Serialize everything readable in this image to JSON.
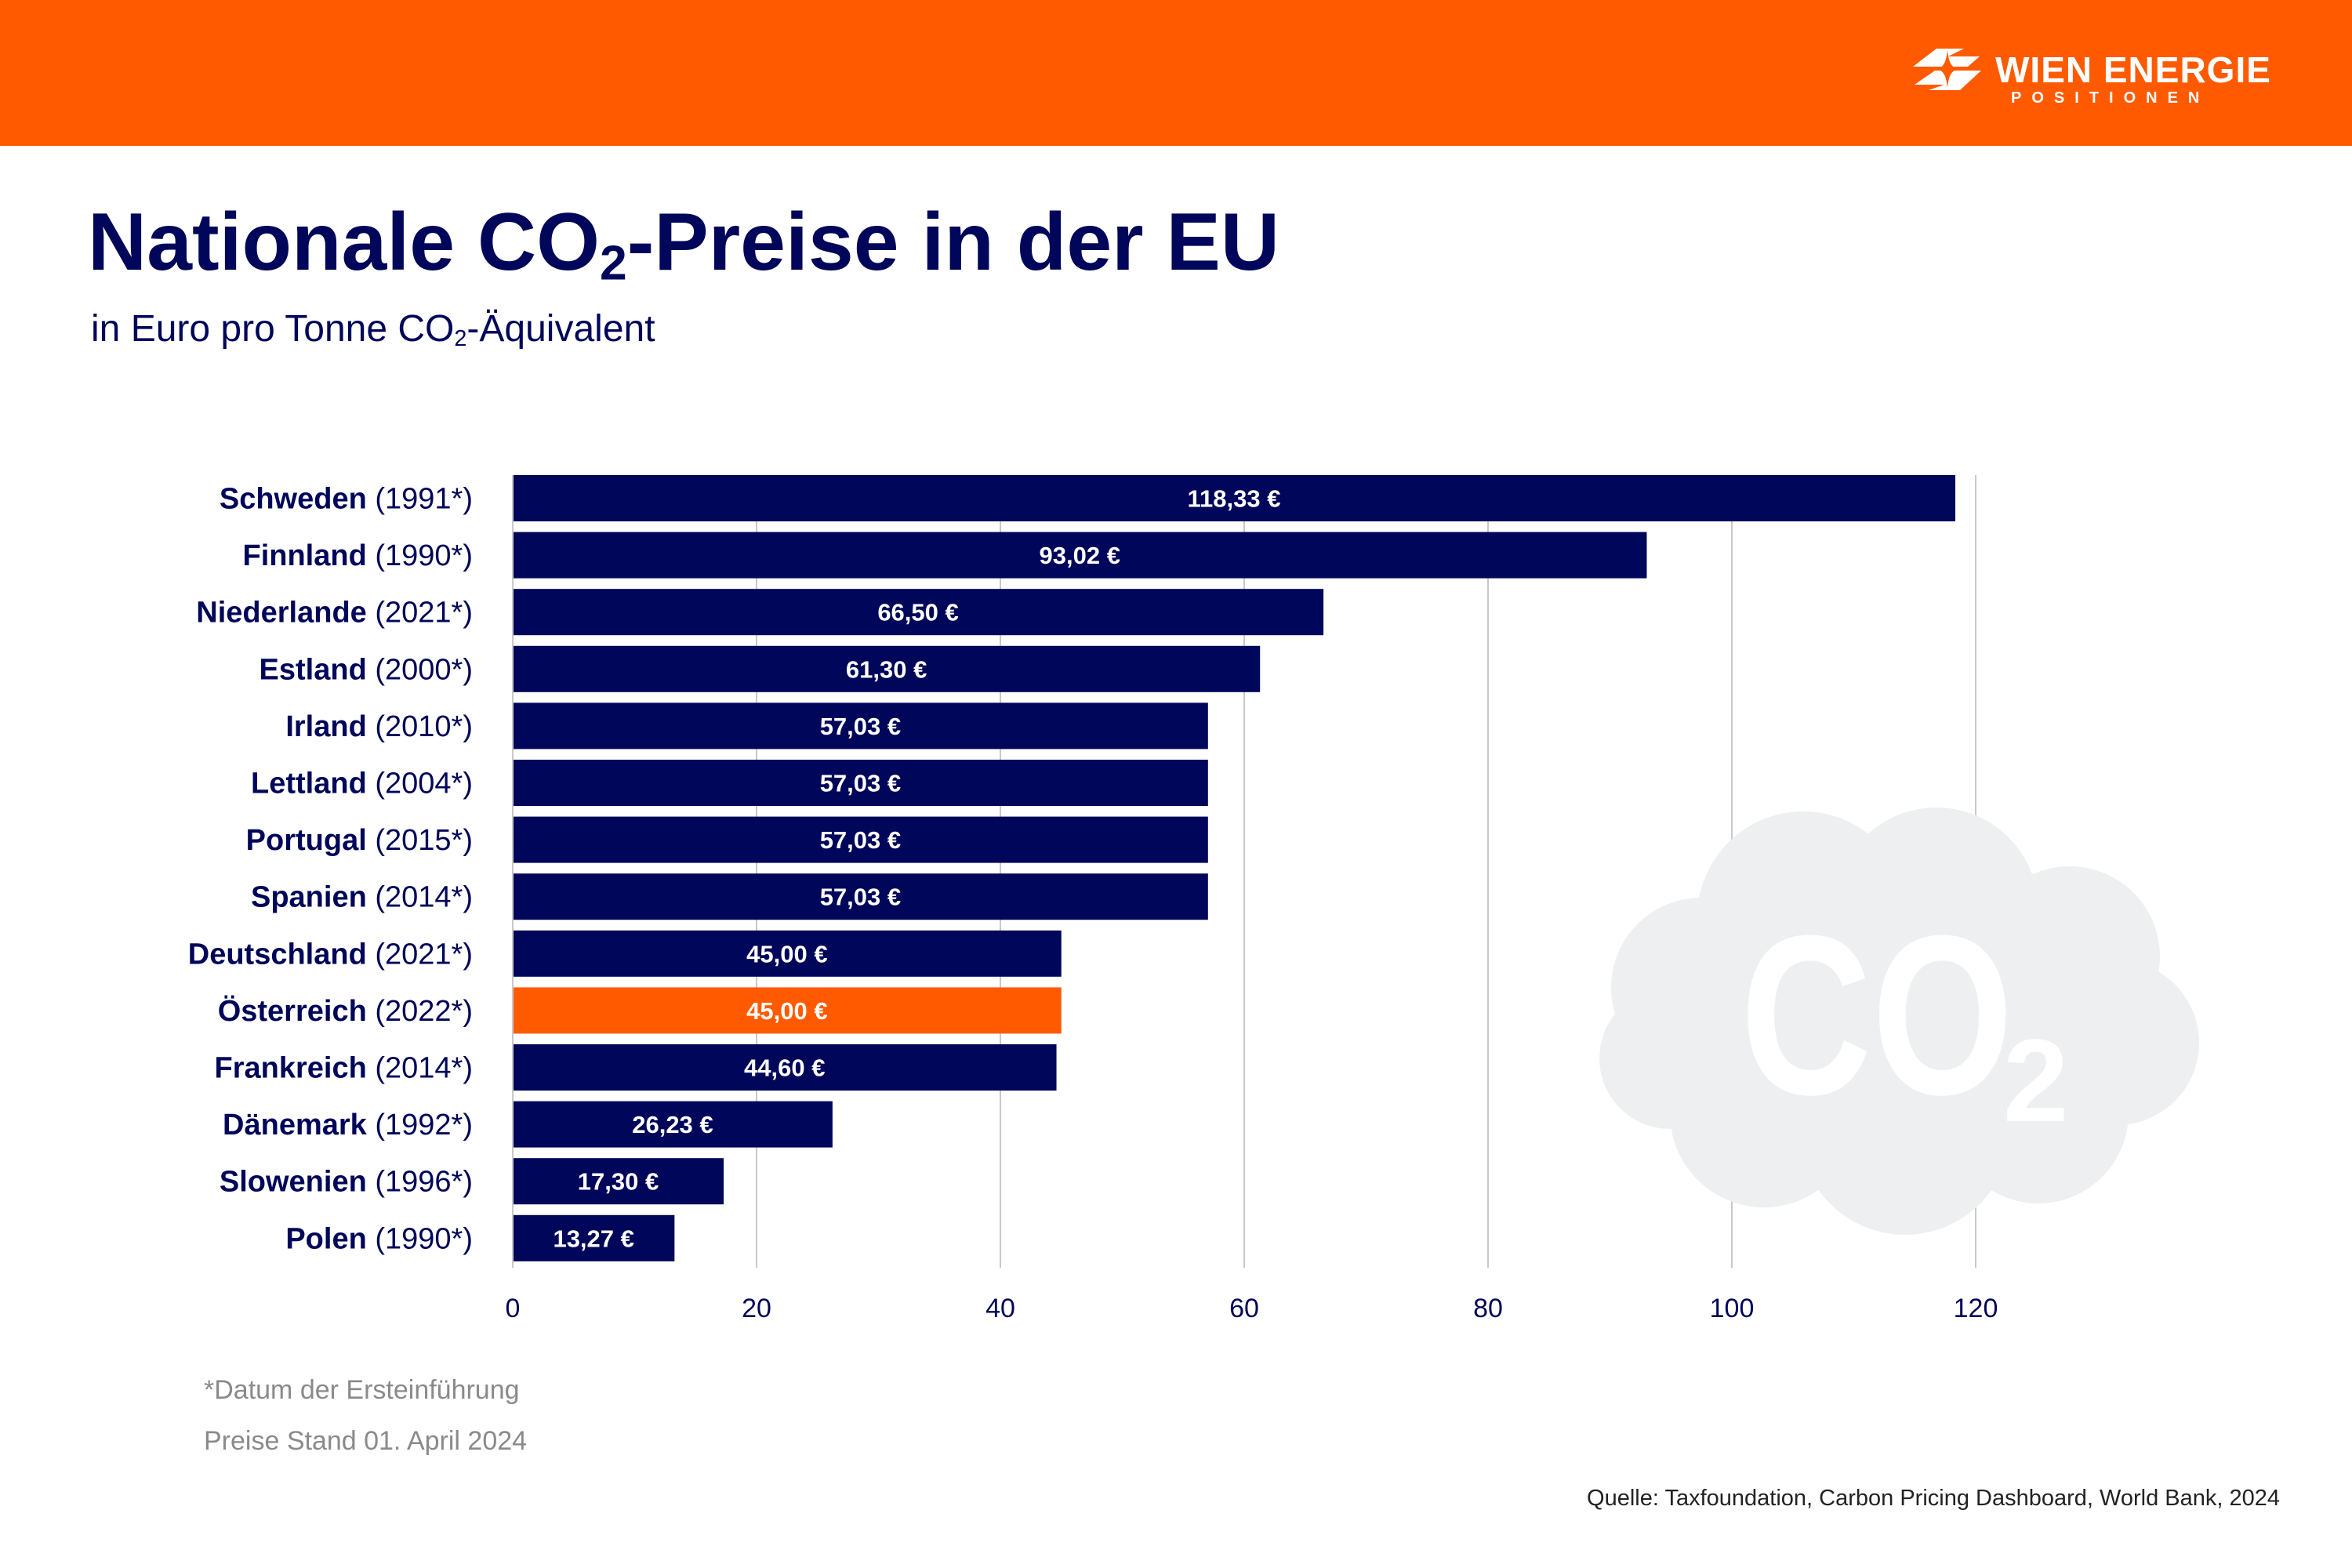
{
  "header": {
    "brand_color": "#FF5A00",
    "logo": {
      "name": "WIEN ENERGIE",
      "sub": "POSITIONEN"
    }
  },
  "title": {
    "pre": "Nationale CO",
    "sub": "2",
    "post": "-Preise in der EU"
  },
  "subtitle": {
    "pre": "in Euro pro Tonne CO",
    "sub": "2",
    "post": "-Äquivalent"
  },
  "chart_data": {
    "type": "bar",
    "orientation": "horizontal",
    "categories": [
      "Schweden",
      "Finnland",
      "Niederlande",
      "Estland",
      "Irland",
      "Lettland",
      "Portugal",
      "Spanien",
      "Deutschland",
      "Österreich",
      "Frankreich",
      "Dänemark",
      "Slowenien",
      "Polen"
    ],
    "years": [
      "(1991*)",
      "(1990*)",
      "(2021*)",
      "(2000*)",
      "(2010*)",
      "(2004*)",
      "(2015*)",
      "(2014*)",
      "(2021*)",
      "(2022*)",
      "(2014*)",
      "(1992*)",
      "(1996*)",
      "(1990*)"
    ],
    "values": [
      118.33,
      93.02,
      66.5,
      61.3,
      57.03,
      57.03,
      57.03,
      57.03,
      45.0,
      45.0,
      44.6,
      26.23,
      17.3,
      13.27
    ],
    "data_labels": [
      "118,33 €",
      "93,02 €",
      "66,50 €",
      "61,30 €",
      "57,03 €",
      "57,03 €",
      "57,03 €",
      "57,03 €",
      "45,00 €",
      "45,00 €",
      "44,60 €",
      "26,23 €",
      "17,30 €",
      "13,27 €"
    ],
    "highlight": "Österreich",
    "bar_color": "#000659",
    "highlight_color": "#FF5A00",
    "xlim": [
      0,
      120
    ],
    "xticks": [
      "0",
      "20",
      "40",
      "60",
      "80",
      "100",
      "120"
    ],
    "grid": true,
    "background_graphic_text": "CO2"
  },
  "footnotes": [
    "*Datum der Ersteinführung",
    "Preise Stand 01. April 2024"
  ],
  "source": "Quelle: Taxfoundation, Carbon Pricing Dashboard, World Bank, 2024"
}
